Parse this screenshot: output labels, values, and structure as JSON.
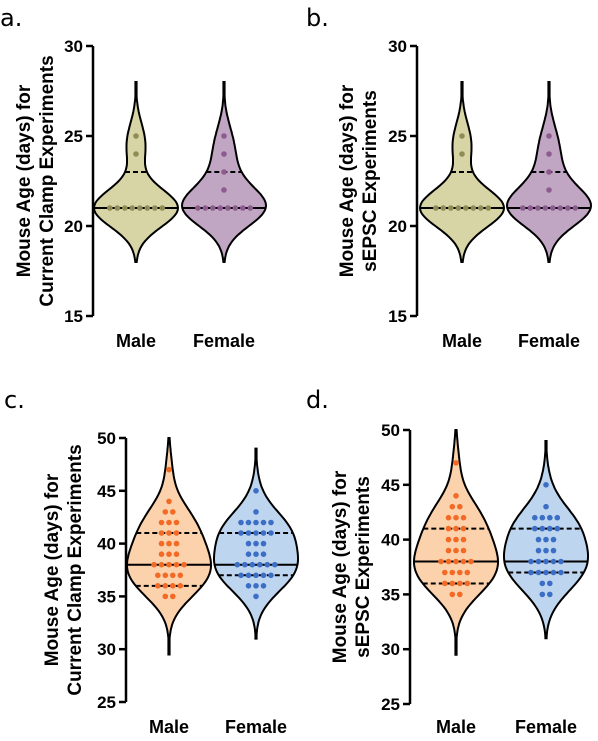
{
  "colors": {
    "olive_fill": "#d7d5a6",
    "olive_dot": "#8f8c55",
    "purple_fill": "#c1a6c4",
    "purple_dot": "#8c5c8e",
    "orange_fill": "#fcd2ad",
    "orange_dot": "#f26a25",
    "blue_fill": "#bdd5ef",
    "blue_dot": "#3c6ec6"
  },
  "chart_data": [
    {
      "panel": "a.",
      "type": "violin",
      "ylabel": [
        "Mouse Age (days) for",
        "Current Clamp Experiments"
      ],
      "ylim": [
        15,
        30
      ],
      "yticks": [
        "15",
        "20",
        "25",
        "30"
      ],
      "categories": [
        "Male",
        "Female"
      ],
      "series": [
        {
          "name": "Male",
          "fill_color": "#d7d5a6",
          "dot_color": "#8f8c55",
          "range": [
            18,
            28
          ],
          "median": 21,
          "quartiles": [
            21,
            23
          ],
          "points": [
            21,
            21,
            21,
            21,
            21,
            21,
            21,
            21,
            24,
            25
          ]
        },
        {
          "name": "Female",
          "fill_color": "#c1a6c4",
          "dot_color": "#8c5c8e",
          "range": [
            18,
            28
          ],
          "median": 21,
          "quartiles": [
            21,
            23
          ],
          "points": [
            21,
            21,
            21,
            21,
            21,
            21,
            21,
            21,
            22,
            23,
            24,
            25
          ]
        }
      ]
    },
    {
      "panel": "b.",
      "type": "violin",
      "ylabel": [
        "Mouse Age (days) for",
        "sEPSC Experiments"
      ],
      "ylim": [
        15,
        30
      ],
      "yticks": [
        "15",
        "20",
        "25",
        "30"
      ],
      "categories": [
        "Male",
        "Female"
      ],
      "series": [
        {
          "name": "Male",
          "fill_color": "#d7d5a6",
          "dot_color": "#8f8c55",
          "range": [
            18,
            28
          ],
          "median": 21,
          "quartiles": [
            21,
            23
          ],
          "points": [
            21,
            21,
            21,
            21,
            21,
            21,
            21,
            21,
            24,
            25
          ]
        },
        {
          "name": "Female",
          "fill_color": "#c1a6c4",
          "dot_color": "#8c5c8e",
          "range": [
            18,
            28
          ],
          "median": 21,
          "quartiles": [
            21,
            23
          ],
          "points": [
            21,
            21,
            21,
            21,
            21,
            21,
            21,
            21,
            22,
            23,
            24,
            25
          ]
        }
      ]
    },
    {
      "panel": "c.",
      "type": "violin",
      "ylabel": [
        "Mouse Age (days) for",
        "Current Clamp Experiments"
      ],
      "ylim": [
        25,
        50
      ],
      "yticks": [
        "25",
        "30",
        "35",
        "40",
        "45",
        "50"
      ],
      "categories": [
        "Male",
        "Female"
      ],
      "series": [
        {
          "name": "Male",
          "fill_color": "#fcd2ad",
          "dot_color": "#f26a25",
          "range": [
            29.5,
            50
          ],
          "median": 38,
          "quartiles": [
            36,
            41
          ],
          "points": [
            35,
            35,
            36,
            36,
            36,
            36,
            37,
            37,
            37,
            37,
            38,
            38,
            38,
            38,
            38,
            39,
            39,
            39,
            40,
            40,
            40,
            41,
            41,
            41,
            42,
            42,
            42,
            43,
            43,
            44,
            47
          ]
        },
        {
          "name": "Female",
          "fill_color": "#bdd5ef",
          "dot_color": "#3c6ec6",
          "range": [
            31,
            49
          ],
          "median": 38,
          "quartiles": [
            37,
            41
          ],
          "points": [
            35,
            36,
            36,
            36,
            37,
            37,
            37,
            37,
            37,
            38,
            38,
            38,
            38,
            38,
            38,
            39,
            39,
            39,
            40,
            40,
            40,
            41,
            41,
            41,
            41,
            41,
            42,
            42,
            42,
            42,
            42,
            43,
            45
          ]
        }
      ]
    },
    {
      "panel": "d.",
      "type": "violin",
      "ylabel": [
        "Mouse  Age (days) for",
        "sEPSC Experiments"
      ],
      "ylim": [
        25,
        50
      ],
      "yticks": [
        "25",
        "30",
        "35",
        "40",
        "45",
        "50"
      ],
      "categories": [
        "Male",
        "Female"
      ],
      "series": [
        {
          "name": "Male",
          "fill_color": "#fcd2ad",
          "dot_color": "#f26a25",
          "range": [
            29.5,
            50
          ],
          "median": 38,
          "quartiles": [
            36,
            41
          ],
          "points": [
            35,
            35,
            36,
            36,
            36,
            36,
            37,
            37,
            37,
            37,
            38,
            38,
            38,
            38,
            38,
            39,
            39,
            39,
            40,
            40,
            40,
            41,
            41,
            41,
            42,
            42,
            42,
            43,
            43,
            44,
            47
          ]
        },
        {
          "name": "Female",
          "fill_color": "#bdd5ef",
          "dot_color": "#3c6ec6",
          "range": [
            31,
            49
          ],
          "median": 38,
          "quartiles": [
            37,
            41
          ],
          "points": [
            35,
            35,
            36,
            36,
            37,
            37,
            37,
            37,
            37,
            38,
            38,
            38,
            38,
            38,
            39,
            39,
            39,
            40,
            40,
            40,
            41,
            41,
            41,
            41,
            42,
            42,
            42,
            42,
            43,
            45
          ]
        }
      ]
    }
  ]
}
